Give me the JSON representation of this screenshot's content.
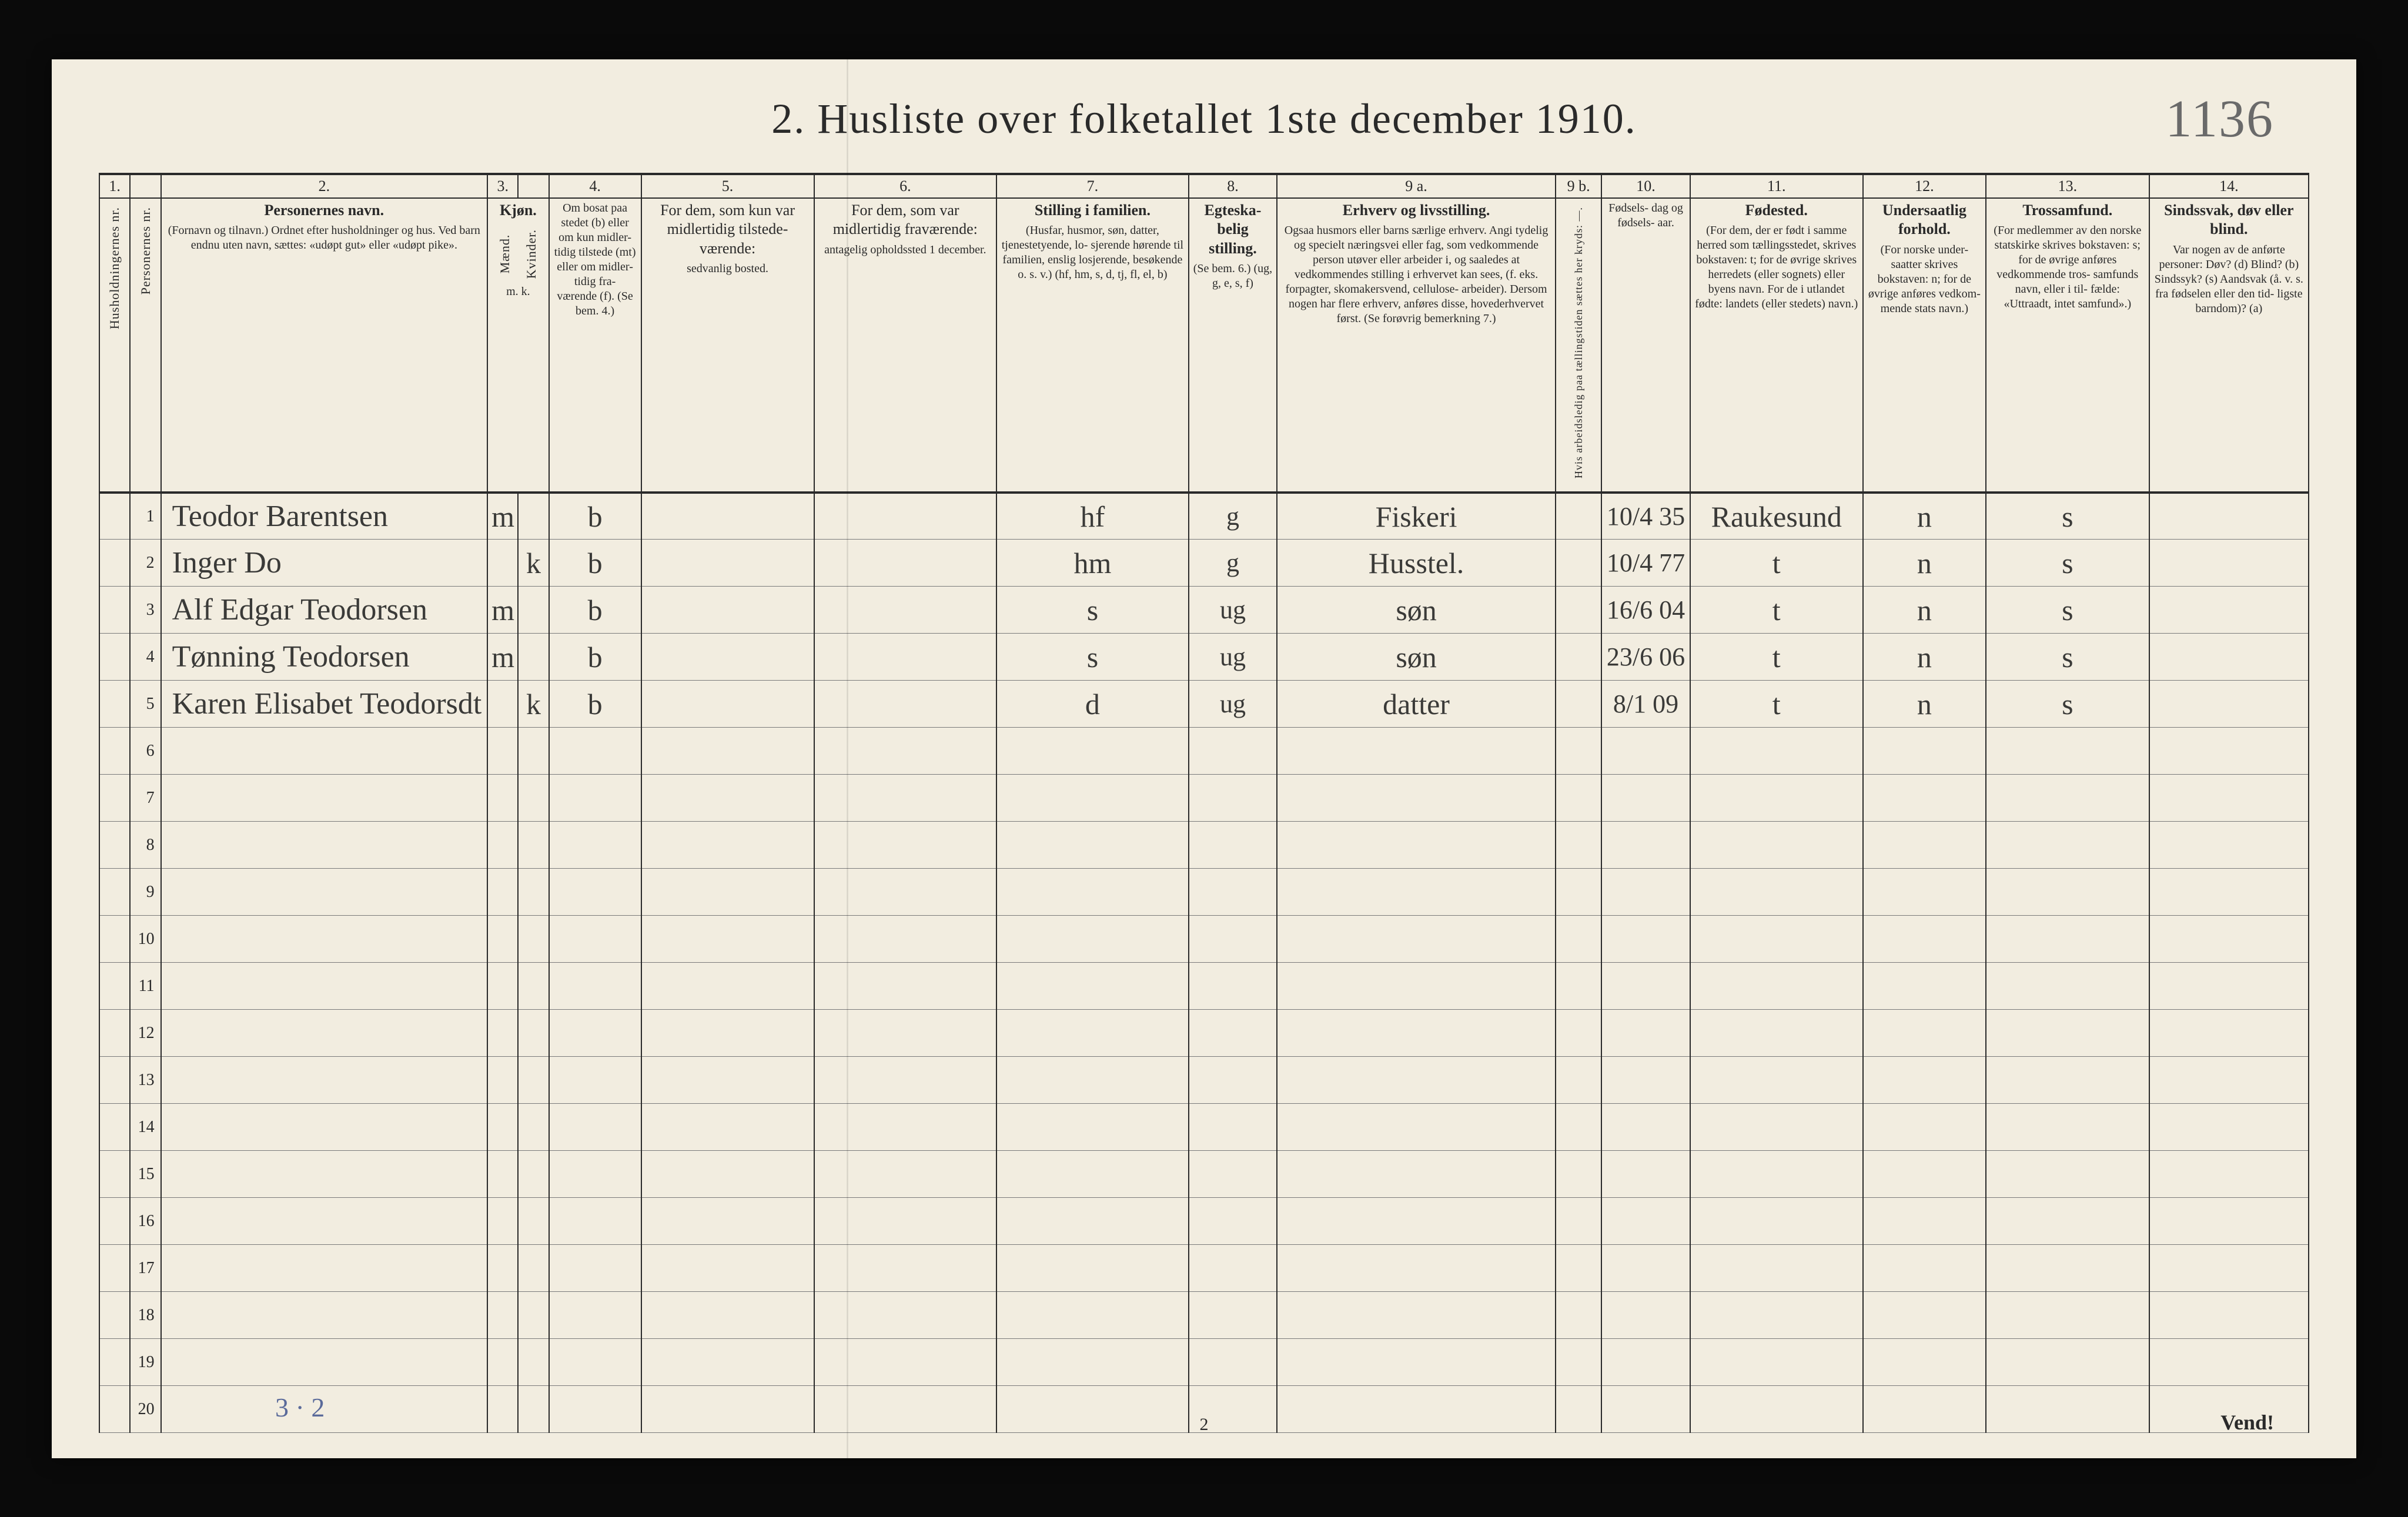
{
  "page_number_handwritten": "1136",
  "title": "2.  Husliste over folketallet 1ste december 1910.",
  "footer_page": "2",
  "vend": "Vend!",
  "tally": "3 · 2",
  "colors": {
    "paper_bg": "#f2ede0",
    "ink": "#2a2a2a",
    "hand_ink": "#3a3a38",
    "pencil": "#6a6a6a",
    "faint_rule": "#7a7a7a",
    "blue_pencil": "#5a6a9a"
  },
  "column_numbers": [
    "1.",
    "",
    "2.",
    "3.",
    "",
    "4.",
    "5.",
    "6.",
    "7.",
    "8.",
    "9 a.",
    "9 b.",
    "10.",
    "11.",
    "12.",
    "13.",
    "14."
  ],
  "column_widths_pct": [
    1.6,
    1.6,
    17,
    1.6,
    1.6,
    4.8,
    9,
    9.5,
    10,
    4.6,
    14.5,
    2.4,
    4.6,
    9,
    6.4,
    8.5,
    8.3
  ],
  "headers": {
    "c1": "Husholdningernes nr.",
    "c1b": "Personernes nr.",
    "c2_title": "Personernes navn.",
    "c2_sub": "(Fornavn og tilnavn.)\nOrdnet efter husholdninger og hus.\nVed barn endnu uten navn, sættes: «udøpt gut»\neller «udøpt pike».",
    "c3_title": "Kjøn.",
    "c3_m": "Mænd.",
    "c3_k": "Kvinder.",
    "c3_mk": "m.  k.",
    "c4_title": "Om bosat\npaa stedet\n(b) eller om\nkun midler-\ntidig tilstede\n(mt) eller\nom midler-\ntidig fra-\nværende (f).\n(Se bem. 4.)",
    "c5_title": "For dem, som kun var\nmidlertidig tilstede-\nværende:",
    "c5_sub": "sedvanlig bosted.",
    "c6_title": "For dem, som var\nmidlertidig\nfraværende:",
    "c6_sub": "antagelig opholdssted\n1 december.",
    "c7_title": "Stilling i familien.",
    "c7_sub": "(Husfar, husmor, søn,\ndatter, tjenestetyende, lo-\nsjerende hørende til familien,\nenslig losjerende, besøkende\no. s. v.)\n(hf, hm, s, d, tj, fl,\nel, b)",
    "c8_title": "Egteska-\nbelig\nstilling.",
    "c8_sub": "(Se bem. 6.)\n(ug, g,\ne, s, f)",
    "c9a_title": "Erhverv og livsstilling.",
    "c9a_sub": "Ogsaa husmors eller barns særlige erhverv.\nAngi tydelig og specielt næringsvei eller fag, som\nvedkommende person utøver eller arbeider i,\nog saaledes at vedkommendes stilling i erhvervet kan\nsees, (f. eks. forpagter, skomakersvend, cellulose-\narbeider). Dersom nogen har flere erhverv,\nanføres disse, hovederhvervet først.\n(Se forøvrig bemerkning 7.)",
    "c9b": "Hvis arbeidsledig\npaa tællingstiden sættes\nher kryds: —.",
    "c10_title": "Fødsels-\ndag\nog\nfødsels-\naar.",
    "c11_title": "Fødested.",
    "c11_sub": "(For dem, der er født\ni samme herred som\ntællingsstedet,\nskrives bokstaven: t;\nfor de øvrige skrives\nherredets (eller sognets)\neller byens navn.\nFor de i utlandet fødte:\nlandets (eller stedets)\nnavn.)",
    "c12_title": "Undersaatlig\nforhold.",
    "c12_sub": "(For norske under-\nsaatter skrives\nbokstaven: n;\nfor de øvrige\nanføres vedkom-\nmende stats navn.)",
    "c13_title": "Trossamfund.",
    "c13_sub": "(For medlemmer av\nden norske statskirke\nskrives bokstaven: s;\nfor de øvrige anføres\nvedkommende tros-\nsamfunds navn, eller i til-\nfælde: «Uttraadt, intet\nsamfund».)",
    "c14_title": "Sindssvak, døv\neller blind.",
    "c14_sub": "Var nogen av de anførte\npersoner:\nDøv?        (d)\nBlind?       (b)\nSindssyk? (s)\nAandsvak (å. v. s. fra\nfødselen eller den tid-\nligste barndom)?  (a)"
  },
  "rows": [
    {
      "n": "1",
      "name": "Teodor Barentsen",
      "m": "m",
      "k": "",
      "bosat": "b",
      "c5": "",
      "c6": "",
      "fam": "hf",
      "egte": "g",
      "erhverv": "Fiskeri",
      "c9b": "",
      "fods": "10/4 35",
      "fsted": "Raukesund",
      "und": "n",
      "tros": "s",
      "c14": ""
    },
    {
      "n": "2",
      "name": "Inger    Do",
      "m": "",
      "k": "k",
      "bosat": "b",
      "c5": "",
      "c6": "",
      "fam": "hm",
      "egte": "g",
      "erhverv": "Husstel.",
      "c9b": "",
      "fods": "10/4 77",
      "fsted": "t",
      "und": "n",
      "tros": "s",
      "c14": ""
    },
    {
      "n": "3",
      "name": "Alf Edgar Teodorsen",
      "m": "m",
      "k": "",
      "bosat": "b",
      "c5": "",
      "c6": "",
      "fam": "s",
      "egte": "ug",
      "erhverv": "søn",
      "c9b": "",
      "fods": "16/6 04",
      "fsted": "t",
      "und": "n",
      "tros": "s",
      "c14": ""
    },
    {
      "n": "4",
      "name": "Tønning Teodorsen",
      "m": "m",
      "k": "",
      "bosat": "b",
      "c5": "",
      "c6": "",
      "fam": "s",
      "egte": "ug",
      "erhverv": "søn",
      "c9b": "",
      "fods": "23/6 06",
      "fsted": "t",
      "und": "n",
      "tros": "s",
      "c14": ""
    },
    {
      "n": "5",
      "name": "Karen Elisabet Teodorsdt",
      "m": "",
      "k": "k",
      "bosat": "b",
      "c5": "",
      "c6": "",
      "fam": "d",
      "egte": "ug",
      "erhverv": "datter",
      "c9b": "",
      "fods": "8/1 09",
      "fsted": "t",
      "und": "n",
      "tros": "s",
      "c14": ""
    }
  ],
  "blank_row_start": 6,
  "blank_row_end": 20
}
